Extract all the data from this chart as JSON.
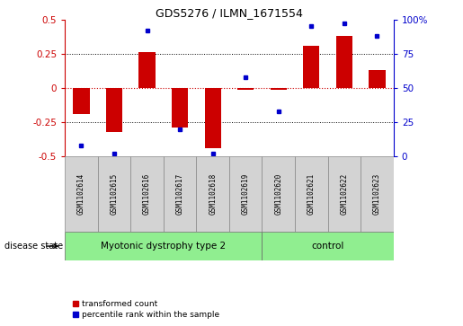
{
  "title": "GDS5276 / ILMN_1671554",
  "samples": [
    "GSM1102614",
    "GSM1102615",
    "GSM1102616",
    "GSM1102617",
    "GSM1102618",
    "GSM1102619",
    "GSM1102620",
    "GSM1102621",
    "GSM1102622",
    "GSM1102623"
  ],
  "red_values": [
    -0.19,
    -0.32,
    0.26,
    -0.29,
    -0.44,
    -0.01,
    -0.01,
    0.31,
    0.38,
    0.13
  ],
  "blue_values": [
    8,
    2,
    92,
    20,
    2,
    58,
    33,
    95,
    97,
    88
  ],
  "groups": [
    {
      "label": "Myotonic dystrophy type 2",
      "start": 0,
      "end": 6
    },
    {
      "label": "control",
      "start": 6,
      "end": 10
    }
  ],
  "disease_state_label": "disease state",
  "legend_red": "transformed count",
  "legend_blue": "percentile rank within the sample",
  "ylim_left": [
    -0.5,
    0.5
  ],
  "ylim_right": [
    0,
    100
  ],
  "yticks_left": [
    -0.5,
    -0.25,
    0,
    0.25,
    0.5
  ],
  "yticks_right": [
    0,
    25,
    50,
    75,
    100
  ],
  "red_color": "#cc0000",
  "blue_color": "#0000cc",
  "group_color": "#90ee90",
  "bg_color": "#ffffff",
  "bar_bg": "#d3d3d3",
  "bar_width": 0.5
}
